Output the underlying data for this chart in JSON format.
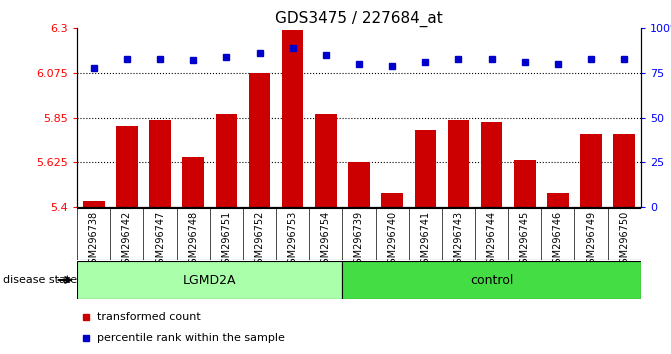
{
  "title": "GDS3475 / 227684_at",
  "samples": [
    "GSM296738",
    "GSM296742",
    "GSM296747",
    "GSM296748",
    "GSM296751",
    "GSM296752",
    "GSM296753",
    "GSM296754",
    "GSM296739",
    "GSM296740",
    "GSM296741",
    "GSM296743",
    "GSM296744",
    "GSM296745",
    "GSM296746",
    "GSM296749",
    "GSM296750"
  ],
  "bar_values": [
    5.43,
    5.81,
    5.84,
    5.65,
    5.87,
    6.075,
    6.29,
    5.87,
    5.625,
    5.47,
    5.79,
    5.84,
    5.83,
    5.635,
    5.47,
    5.77,
    5.77
  ],
  "percentile_values": [
    78,
    83,
    83,
    82,
    84,
    86,
    89,
    85,
    80,
    79,
    81,
    83,
    83,
    81,
    80,
    83,
    83
  ],
  "groups": [
    {
      "label": "LGMD2A",
      "start": 0,
      "end": 8,
      "color": "#aaffaa"
    },
    {
      "label": "control",
      "start": 8,
      "end": 17,
      "color": "#44dd44"
    }
  ],
  "bar_color": "#cc0000",
  "dot_color": "#0000cc",
  "ylim_left": [
    5.4,
    6.3
  ],
  "ylim_right": [
    0,
    100
  ],
  "yticks_left": [
    5.4,
    5.625,
    5.85,
    6.075,
    6.3
  ],
  "yticks_right": [
    0,
    25,
    50,
    75,
    100
  ],
  "ytick_labels_left": [
    "5.4",
    "5.625",
    "5.85",
    "6.075",
    "6.3"
  ],
  "ytick_labels_right": [
    "0",
    "25",
    "50",
    "75",
    "100%"
  ],
  "hlines": [
    5.625,
    5.85,
    6.075
  ],
  "disease_state_label": "disease state",
  "legend_bar_label": "transformed count",
  "legend_dot_label": "percentile rank within the sample",
  "fig_bg_color": "#ffffff",
  "plot_bg_color": "#ffffff",
  "xtick_bg_color": "#d0d0d0"
}
